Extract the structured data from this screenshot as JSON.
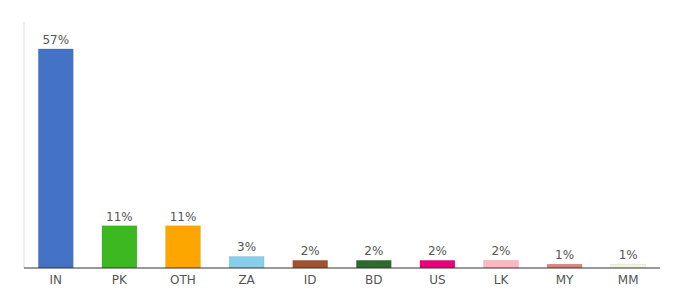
{
  "chart_data": {
    "type": "bar",
    "categories": [
      "IN",
      "PK",
      "OTH",
      "ZA",
      "ID",
      "BD",
      "US",
      "LK",
      "MY",
      "MM"
    ],
    "values": [
      57,
      11,
      11,
      3,
      2,
      2,
      2,
      2,
      1,
      1
    ],
    "value_labels": [
      "57%",
      "11%",
      "11%",
      "3%",
      "2%",
      "2%",
      "2%",
      "2%",
      "1%",
      "1%"
    ],
    "colors": [
      "#4472C4",
      "#3CB820",
      "#FFA500",
      "#87CEEB",
      "#A0522D",
      "#2D6B2D",
      "#E8007A",
      "#FFB6C1",
      "#E08080",
      "#F5F5DC"
    ],
    "ylim": [
      0,
      64
    ],
    "data_labels": true,
    "tick_labels": "x",
    "grid": false
  }
}
